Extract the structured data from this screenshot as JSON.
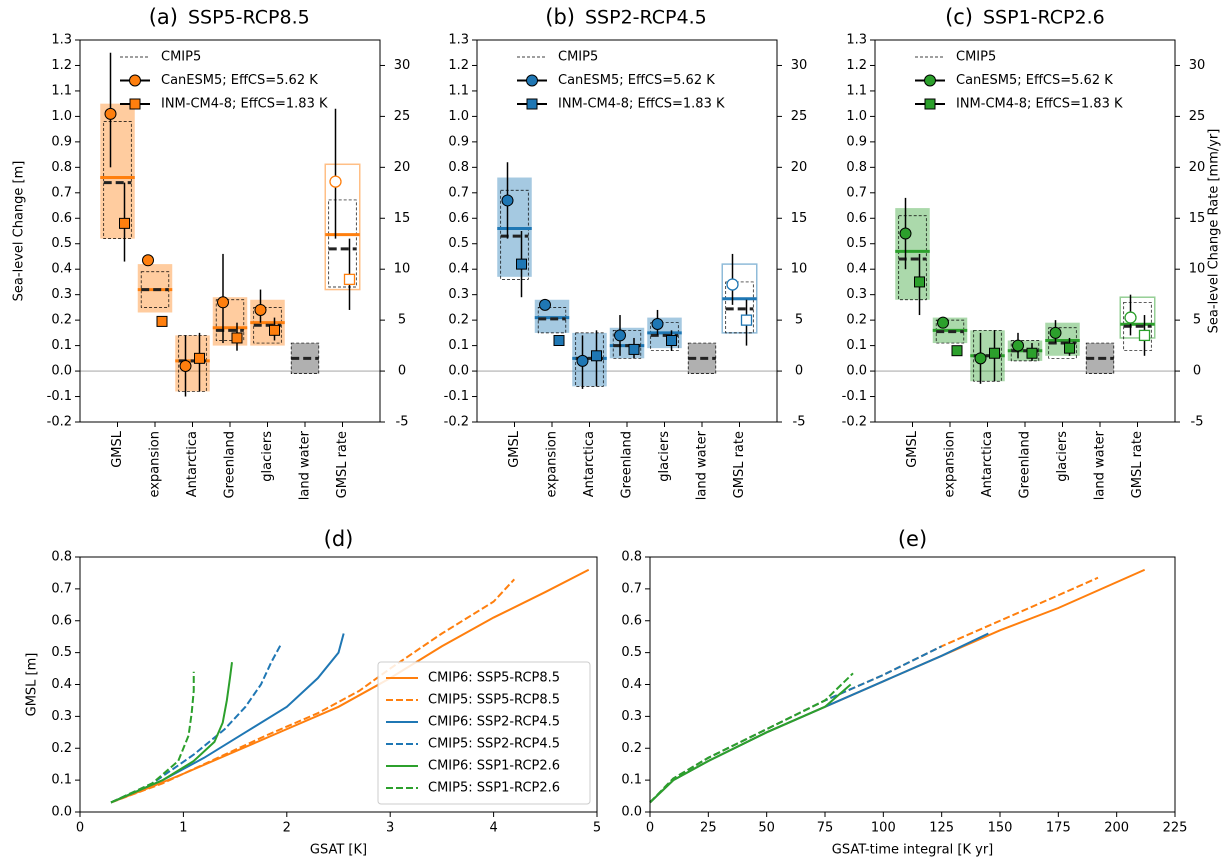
{
  "chart_data": [
    {
      "type": "components",
      "label": "(a)",
      "title": "SSP5-RCP8.5",
      "color": "#ff7f0e",
      "ylabel": "Sea-level Change [m]",
      "categories": [
        "GMSL",
        "expansion",
        "Antarctica",
        "Greenland",
        "glaciers",
        "land water"
      ],
      "ylim": [
        -0.2,
        1.3
      ],
      "yticks": [
        -0.2,
        -0.1,
        {
          "value": 0,
          "label": "0.0"
        },
        0.1,
        0.2,
        0.3,
        0.4,
        0.5,
        0.6,
        0.7,
        0.8,
        0.9,
        {
          "value": 1,
          "label": "1.0"
        },
        1.1,
        1.2,
        1.3
      ],
      "y2lim": [
        -5,
        32.5
      ],
      "y2ticks": [
        -5,
        0,
        5,
        10,
        15,
        20,
        25,
        30
      ],
      "cmip6": {
        "low": [
          0.52,
          0.23,
          -0.08,
          0.1,
          0.1,
          null
        ],
        "high": [
          1.05,
          0.42,
          0.14,
          0.29,
          0.28,
          null
        ],
        "median": [
          0.76,
          0.32,
          0.04,
          0.17,
          0.19,
          null
        ]
      },
      "series": [
        {
          "name": "CMIP5",
          "low": [
            0.52,
            0.25,
            -0.08,
            0.12,
            0.11,
            -0.01
          ],
          "high": [
            0.98,
            0.39,
            0.14,
            0.28,
            0.25,
            0.11
          ],
          "median": [
            0.74,
            0.32,
            0.04,
            0.16,
            0.18,
            0.05
          ]
        },
        {
          "name": "CanESM5; EffCS=5.62 K",
          "values": [
            1.01,
            0.435,
            0.02,
            0.27,
            0.24,
            null
          ],
          "low": [
            0.8,
            null,
            -0.1,
            0.11,
            0.19,
            null
          ],
          "high": [
            1.25,
            null,
            0.14,
            0.46,
            0.32,
            null
          ]
        },
        {
          "name": "INM-CM4-8; EffCS=1.83 K",
          "values": [
            0.58,
            0.195,
            0.05,
            0.13,
            0.16,
            null
          ],
          "low": [
            0.43,
            null,
            -0.08,
            0.08,
            0.12,
            null
          ],
          "high": [
            0.74,
            null,
            0.15,
            0.19,
            0.21,
            null
          ]
        }
      ],
      "rate": {
        "category": "GMSL rate",
        "axis": "y2",
        "cmip6": {
          "low": 8,
          "high": 20.3,
          "median": 13.4
        },
        "series": [
          {
            "low": 8.25,
            "high": 16.8,
            "median": 12
          },
          {
            "value": 18.6,
            "low": 13,
            "high": 25.75
          },
          {
            "value": 9,
            "low": 6,
            "high": 13
          }
        ]
      }
    },
    {
      "type": "components",
      "label": "(b)",
      "title": "SSP2-RCP4.5",
      "color": "#1f77b4",
      "categories": [
        "GMSL",
        "expansion",
        "Antarctica",
        "Greenland",
        "glaciers",
        "land water"
      ],
      "ylim": [
        -0.2,
        1.3
      ],
      "yticks": [
        -0.2,
        -0.1,
        {
          "value": 0,
          "label": "0.0"
        },
        0.1,
        0.2,
        0.3,
        0.4,
        0.5,
        0.6,
        0.7,
        0.8,
        0.9,
        {
          "value": 1,
          "label": "1.0"
        },
        1.1,
        1.2,
        1.3
      ],
      "y2lim": [
        -5,
        32.5
      ],
      "y2ticks": [
        -5,
        0,
        5,
        10,
        15,
        20,
        25,
        30
      ],
      "cmip6": {
        "low": [
          0.37,
          0.15,
          -0.06,
          0.05,
          0.09,
          null
        ],
        "high": [
          0.76,
          0.28,
          0.15,
          0.17,
          0.21,
          null
        ],
        "median": [
          0.56,
          0.21,
          0.05,
          0.1,
          0.15,
          null
        ]
      },
      "series": [
        {
          "name": "CMIP5",
          "low": [
            0.36,
            0.15,
            -0.06,
            0.05,
            0.08,
            -0.01
          ],
          "high": [
            0.71,
            0.25,
            0.15,
            0.16,
            0.19,
            0.11
          ],
          "median": [
            0.53,
            0.205,
            0.05,
            0.1,
            0.14,
            0.05
          ]
        },
        {
          "name": "CanESM5; EffCS=5.62 K",
          "values": [
            0.67,
            0.26,
            0.04,
            0.14,
            0.185,
            null
          ],
          "low": [
            0.52,
            null,
            -0.07,
            0.06,
            0.14,
            null
          ],
          "high": [
            0.82,
            null,
            0.14,
            0.22,
            0.24,
            null
          ]
        },
        {
          "name": "INM-CM4-8; EffCS=1.83 K",
          "values": [
            0.42,
            0.12,
            0.06,
            0.085,
            0.12,
            null
          ],
          "low": [
            0.29,
            null,
            -0.06,
            0.05,
            0.08,
            null
          ],
          "high": [
            0.55,
            null,
            0.16,
            0.13,
            0.16,
            null
          ]
        }
      ],
      "rate": {
        "category": "GMSL rate",
        "axis": "y2",
        "cmip6": {
          "low": 3.75,
          "high": 10.5,
          "median": 7.1
        },
        "series": [
          {
            "low": 3.75,
            "high": 8.75,
            "median": 6.1
          },
          {
            "value": 8.5,
            "low": 6.5,
            "high": 11.5
          },
          {
            "value": 5,
            "low": 2.5,
            "high": 7
          }
        ]
      }
    },
    {
      "type": "components",
      "label": "(c)",
      "title": "SSP1-RCP2.6",
      "color": "#2ca02c",
      "y2label": "Sea-level Change Rate [mm/yr]",
      "categories": [
        "GMSL",
        "expansion",
        "Antarctica",
        "Greenland",
        "glaciers",
        "land water"
      ],
      "ylim": [
        -0.2,
        1.3
      ],
      "yticks": [
        -0.2,
        -0.1,
        {
          "value": 0,
          "label": "0.0"
        },
        0.1,
        0.2,
        0.3,
        0.4,
        0.5,
        0.6,
        0.7,
        0.8,
        0.9,
        {
          "value": 1,
          "label": "1.0"
        },
        1.1,
        1.2,
        1.3
      ],
      "y2lim": [
        -5,
        32.5
      ],
      "y2ticks": [
        -5,
        0,
        5,
        10,
        15,
        20,
        25,
        30
      ],
      "cmip6": {
        "low": [
          0.28,
          0.11,
          -0.04,
          0.04,
          0.06,
          null
        ],
        "high": [
          0.64,
          0.21,
          0.16,
          0.12,
          0.19,
          null
        ],
        "median": [
          0.47,
          0.16,
          0.06,
          0.08,
          0.12,
          null
        ]
      },
      "series": [
        {
          "name": "CMIP5",
          "low": [
            0.28,
            0.11,
            -0.04,
            0.04,
            0.05,
            -0.01
          ],
          "high": [
            0.61,
            0.2,
            0.16,
            0.12,
            0.17,
            0.11
          ],
          "median": [
            0.44,
            0.155,
            0.06,
            0.08,
            0.11,
            0.05
          ]
        },
        {
          "name": "CanESM5; EffCS=5.62 K",
          "values": [
            0.54,
            0.19,
            0.05,
            0.1,
            0.15,
            null
          ],
          "low": [
            0.4,
            null,
            -0.05,
            0.05,
            0.11,
            null
          ],
          "high": [
            0.68,
            null,
            0.15,
            0.15,
            0.2,
            null
          ]
        },
        {
          "name": "INM-CM4-8; EffCS=1.83 K",
          "values": [
            0.35,
            0.08,
            0.07,
            0.07,
            0.09,
            null
          ],
          "low": [
            0.22,
            null,
            -0.04,
            0.04,
            0.06,
            null
          ],
          "high": [
            0.46,
            null,
            0.16,
            0.11,
            0.13,
            null
          ]
        }
      ],
      "rate": {
        "category": "GMSL rate",
        "axis": "y2",
        "cmip6": {
          "low": 3.25,
          "high": 7.25,
          "median": 4.6
        },
        "series": [
          {
            "low": 2,
            "high": 6.75,
            "median": 4.4
          },
          {
            "value": 5.25,
            "low": 3.5,
            "high": 7.5
          },
          {
            "value": 3.5,
            "low": 1.5,
            "high": 5.5
          }
        ]
      }
    },
    {
      "type": "line",
      "label": "(d)",
      "xlabel": "GSAT [K]",
      "ylabel": "GMSL [m]",
      "xlim": [
        0,
        5
      ],
      "xticks": [
        0,
        1,
        2,
        3,
        4,
        5
      ],
      "ylim": [
        0,
        0.8
      ],
      "yticks": [
        {
          "value": 0,
          "label": "0.0"
        },
        0.1,
        0.2,
        0.3,
        0.4,
        0.5,
        0.6,
        0.7,
        0.8
      ],
      "legend": "lower right",
      "series": [
        {
          "name": "CMIP6: SSP5-RCP8.5",
          "color": "#ff7f0e",
          "dashed": false,
          "x": [
            0.3,
            0.7,
            1.0,
            1.5,
            2.0,
            2.5,
            3.0,
            3.5,
            4.0,
            4.5,
            4.92
          ],
          "values": [
            0.03,
            0.08,
            0.12,
            0.19,
            0.26,
            0.33,
            0.42,
            0.52,
            0.61,
            0.69,
            0.76
          ]
        },
        {
          "name": "CMIP5: SSP5-RCP8.5",
          "color": "#ff7f0e",
          "dashed": true,
          "x": [
            0.3,
            0.8,
            1.2,
            1.8,
            2.3,
            2.7,
            3.0,
            3.5,
            4.0,
            4.2
          ],
          "values": [
            0.03,
            0.09,
            0.15,
            0.24,
            0.31,
            0.38,
            0.45,
            0.56,
            0.66,
            0.73
          ]
        },
        {
          "name": "CMIP6: SSP2-RCP4.5",
          "color": "#1f77b4",
          "dashed": false,
          "x": [
            0.3,
            0.8,
            1.2,
            1.6,
            2.0,
            2.3,
            2.5,
            2.55
          ],
          "values": [
            0.03,
            0.1,
            0.17,
            0.25,
            0.33,
            0.42,
            0.5,
            0.56
          ]
        },
        {
          "name": "CMIP5: SSP2-RCP4.5",
          "color": "#1f77b4",
          "dashed": true,
          "x": [
            0.3,
            0.7,
            1.1,
            1.4,
            1.6,
            1.75,
            1.85,
            1.95
          ],
          "values": [
            0.03,
            0.09,
            0.18,
            0.26,
            0.33,
            0.4,
            0.47,
            0.53
          ]
        },
        {
          "name": "CMIP6: SSP1-RCP2.6",
          "color": "#2ca02c",
          "dashed": false,
          "x": [
            0.3,
            0.8,
            1.1,
            1.3,
            1.38,
            1.42,
            1.45,
            1.47
          ],
          "values": [
            0.03,
            0.1,
            0.16,
            0.22,
            0.28,
            0.35,
            0.42,
            0.47
          ]
        },
        {
          "name": "CMIP5: SSP1-RCP2.6",
          "color": "#2ca02c",
          "dashed": true,
          "x": [
            0.3,
            0.7,
            0.95,
            1.05,
            1.08,
            1.1,
            1.1
          ],
          "values": [
            0.03,
            0.09,
            0.16,
            0.24,
            0.31,
            0.38,
            0.44
          ]
        }
      ]
    },
    {
      "type": "line",
      "label": "(e)",
      "xlabel": "GSAT-time integral [K yr]",
      "xlim": [
        0,
        225
      ],
      "xticks": [
        0,
        25,
        50,
        75,
        100,
        125,
        150,
        175,
        200,
        225
      ],
      "ylim": [
        0,
        0.8
      ],
      "yticks": [
        {
          "value": 0,
          "label": "0.0"
        },
        0.1,
        0.2,
        0.3,
        0.4,
        0.5,
        0.6,
        0.7,
        0.8
      ],
      "series": [
        {
          "color": "#ff7f0e",
          "dashed": false,
          "x": [
            0,
            10,
            25,
            50,
            75,
            100,
            125,
            150,
            175,
            212
          ],
          "values": [
            0.03,
            0.1,
            0.16,
            0.25,
            0.33,
            0.41,
            0.49,
            0.57,
            0.64,
            0.76
          ]
        },
        {
          "color": "#ff7f0e",
          "dashed": true,
          "x": [
            0,
            10,
            25,
            50,
            75,
            100,
            125,
            150,
            175,
            192
          ],
          "values": [
            0.03,
            0.105,
            0.17,
            0.26,
            0.35,
            0.43,
            0.52,
            0.6,
            0.68,
            0.735
          ]
        },
        {
          "color": "#1f77b4",
          "dashed": false,
          "x": [
            0,
            10,
            25,
            50,
            75,
            100,
            125,
            145
          ],
          "values": [
            0.03,
            0.1,
            0.16,
            0.25,
            0.33,
            0.41,
            0.49,
            0.56
          ]
        },
        {
          "color": "#1f77b4",
          "dashed": true,
          "x": [
            0,
            10,
            25,
            50,
            75,
            100,
            125
          ],
          "values": [
            0.03,
            0.105,
            0.17,
            0.26,
            0.35,
            0.43,
            0.52
          ]
        },
        {
          "color": "#2ca02c",
          "dashed": false,
          "x": [
            0,
            10,
            25,
            50,
            75,
            86
          ],
          "values": [
            0.03,
            0.1,
            0.16,
            0.25,
            0.33,
            0.4
          ]
        },
        {
          "color": "#2ca02c",
          "dashed": true,
          "x": [
            0,
            10,
            25,
            50,
            75,
            87
          ],
          "values": [
            0.03,
            0.105,
            0.17,
            0.26,
            0.35,
            0.435
          ]
        }
      ]
    }
  ]
}
